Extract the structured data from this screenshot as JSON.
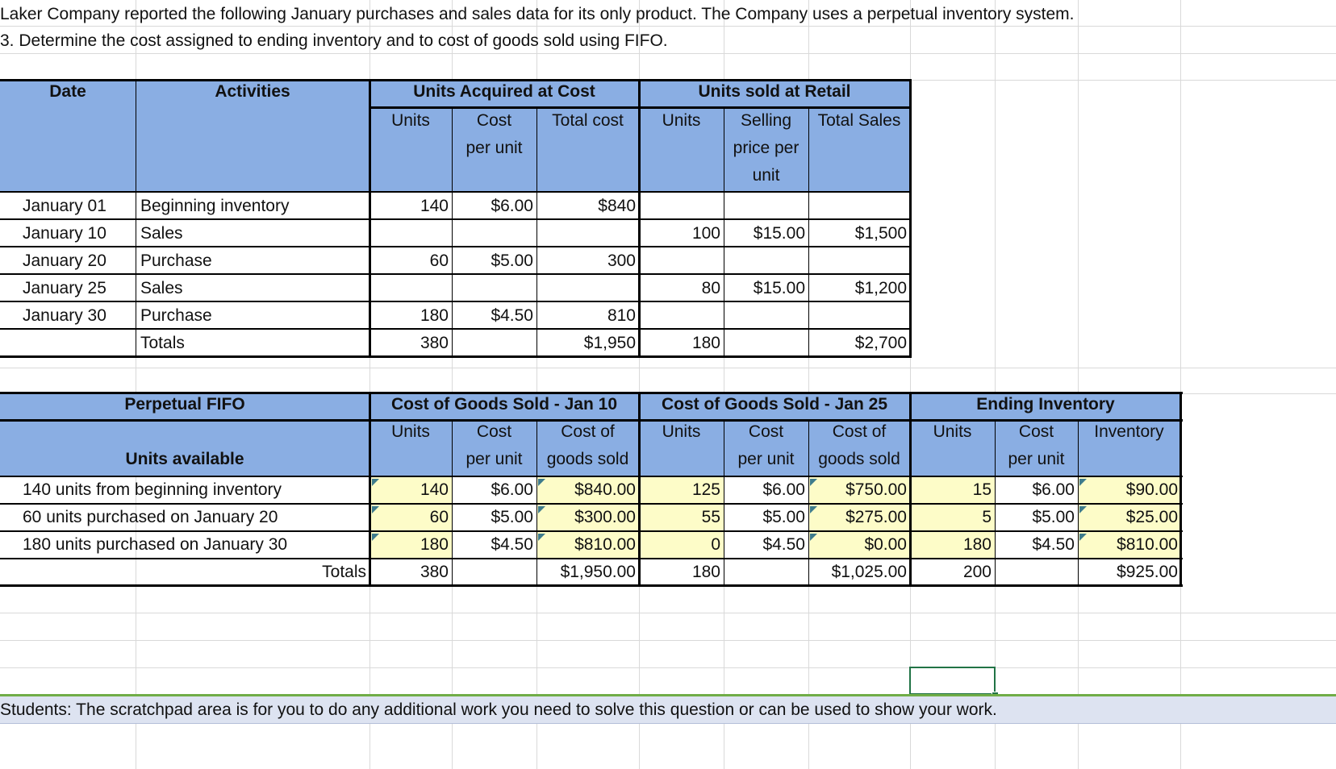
{
  "intro": {
    "line1": "Laker Company reported the following January purchases and sales data for its only product. The Company uses a perpetual inventory system.",
    "line2": "3. Determine the cost assigned to ending inventory and to cost of goods sold using FIFO."
  },
  "table1": {
    "headers": {
      "date": "Date",
      "activities": "Activities",
      "acquired": "Units Acquired at Cost",
      "sold": "Units sold at Retail",
      "units": "Units",
      "cost_l1": "Cost",
      "cost_l2": "per unit",
      "total_cost": "Total cost",
      "units2": "Units",
      "sell_l1": "Selling",
      "sell_l2": "price per",
      "sell_l3": "unit",
      "total_sales": "Total Sales"
    },
    "rows": [
      {
        "date": "January 01",
        "activity": "Beginning inventory",
        "units": "140",
        "cost": "$6.00",
        "total": "$840",
        "sold_units": "",
        "price": "",
        "sales": ""
      },
      {
        "date": "January 10",
        "activity": "Sales",
        "units": "",
        "cost": "",
        "total": "",
        "sold_units": "100",
        "price": "$15.00",
        "sales": "$1,500"
      },
      {
        "date": "January 20",
        "activity": "Purchase",
        "units": "60",
        "cost": "$5.00",
        "total": "300",
        "sold_units": "",
        "price": "",
        "sales": ""
      },
      {
        "date": "January 25",
        "activity": "Sales",
        "units": "",
        "cost": "",
        "total": "",
        "sold_units": "80",
        "price": "$15.00",
        "sales": "$1,200"
      },
      {
        "date": "January 30",
        "activity": "Purchase",
        "units": "180",
        "cost": "$4.50",
        "total": "810",
        "sold_units": "",
        "price": "",
        "sales": ""
      }
    ],
    "totals": {
      "label": "Totals",
      "units": "380",
      "total": "$1,950",
      "sold_units": "180",
      "sales": "$2,700"
    }
  },
  "table2": {
    "headers": {
      "fifo": "Perpetual FIFO",
      "units_available": "Units available",
      "cogs10": "Cost of Goods Sold - Jan 10",
      "cogs25": "Cost of Goods Sold - Jan 25",
      "ending": "Ending Inventory",
      "units": "Units",
      "cost_l1": "Cost",
      "cost_l2": "per unit",
      "cogs_l1": "Cost of",
      "cogs_l2": "goods sold",
      "inventory": "Inventory"
    },
    "rows": [
      {
        "label": "140 units from beginning inventory",
        "u10": "140",
        "c10": "$6.00",
        "g10": "$840.00",
        "u25": "125",
        "c25": "$6.00",
        "g25": "$750.00",
        "ue": "15",
        "ce": "$6.00",
        "ie": "$90.00"
      },
      {
        "label": "60 units purchased on January 20",
        "u10": "60",
        "c10": "$5.00",
        "g10": "$300.00",
        "u25": "55",
        "c25": "$5.00",
        "g25": "$275.00",
        "ue": "5",
        "ce": "$5.00",
        "ie": "$25.00"
      },
      {
        "label": "180 units purchased on January 30",
        "u10": "180",
        "c10": "$4.50",
        "g10": "$810.00",
        "u25": "0",
        "c25": "$4.50",
        "g25": "$0.00",
        "ue": "180",
        "ce": "$4.50",
        "ie": "$810.00"
      }
    ],
    "totals": {
      "label": "Totals",
      "u10": "380",
      "g10": "$1,950.00",
      "u25": "180",
      "g25": "$1,025.00",
      "ue": "200",
      "ie": "$925.00"
    }
  },
  "scratchpad": {
    "note": "Students: The scratchpad area is for you to do any additional work you need to solve this question or can be used to show your work."
  },
  "colors": {
    "header_band": "#8aaee3",
    "input_cell": "#fdfcc8",
    "scratchpad_band": "#dde3f1",
    "selection": "#217346"
  }
}
